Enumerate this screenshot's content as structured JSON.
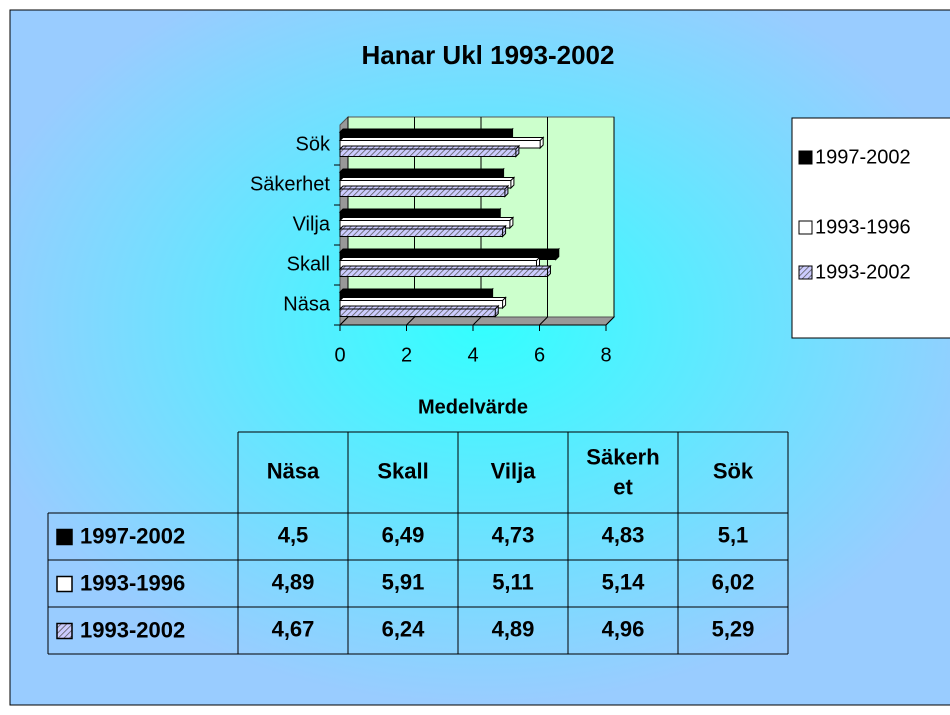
{
  "chart_data": {
    "type": "bar",
    "orientation": "horizontal",
    "title": "Hanar Ukl 1993-2002",
    "x_label": "Medelvärde",
    "categories": [
      "Näsa",
      "Skall",
      "Vilja",
      "Säkerhet",
      "Sök"
    ],
    "series": [
      {
        "name": "1997-2002",
        "color": "#000000",
        "values": [
          4.5,
          6.49,
          4.73,
          4.83,
          5.1
        ],
        "value_labels": [
          "4,5",
          "6,49",
          "4,73",
          "4,83",
          "5,1"
        ]
      },
      {
        "name": "1993-1996",
        "color": "#ffffff",
        "values": [
          4.89,
          5.91,
          5.11,
          5.14,
          6.02
        ],
        "value_labels": [
          "4,89",
          "5,91",
          "5,11",
          "5,14",
          "6,02"
        ]
      },
      {
        "name": "1993-2002",
        "color": "#ccccff",
        "hatch": true,
        "values": [
          4.67,
          6.24,
          4.89,
          4.96,
          5.29
        ],
        "value_labels": [
          "4,67",
          "6,24",
          "4,89",
          "4,96",
          "5,29"
        ]
      }
    ],
    "xlim": [
      0,
      8
    ],
    "xticks": [
      0,
      2,
      4,
      6,
      8
    ],
    "grid": true,
    "legend": "right",
    "data_table": true
  }
}
